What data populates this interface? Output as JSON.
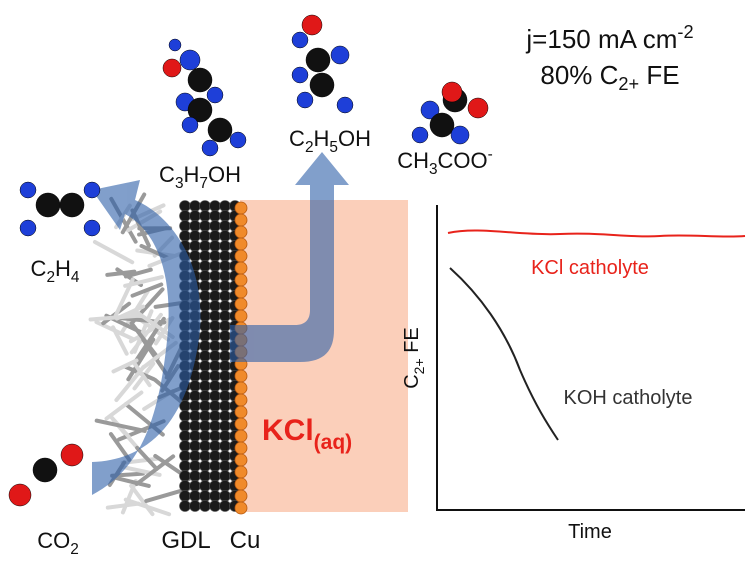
{
  "header": {
    "current": {
      "text": "j=150 mA cm",
      "sup": "-2"
    },
    "efficiency": [
      "80% C",
      "2+",
      " FE"
    ]
  },
  "molecules": [
    [
      "C",
      "3",
      "H",
      "7",
      "OH"
    ],
    [
      "C",
      "2",
      "H",
      "5",
      "OH"
    ],
    [
      "CH",
      "3",
      "COO"
    ],
    [
      "C",
      "2",
      "H",
      "4"
    ],
    [
      "CO",
      "2"
    ]
  ],
  "acetate_charge": "-",
  "labels": {
    "gdl": "GDL",
    "cu": "Cu",
    "electrolyte": [
      "KCl",
      "(aq)"
    ]
  },
  "plot": {
    "y_label": [
      "C",
      "2+",
      " FE"
    ],
    "x_label": "Time",
    "series": [
      "KCl catholyte",
      "KOH catholyte"
    ]
  }
}
